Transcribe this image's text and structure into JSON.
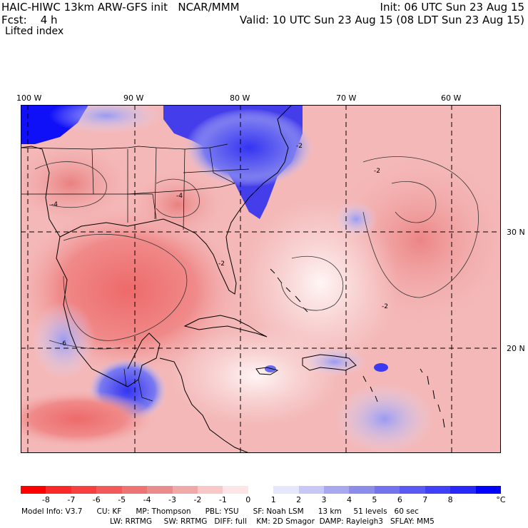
{
  "header": {
    "title": "HAIC-HIWC 13km ARW-GFS init   NCAR/MMM",
    "init": "Init: 06 UTC Sun 23 Aug 15",
    "fcst": "Fcst:    4 h",
    "valid": "Valid: 10 UTC Sun 23 Aug 15 (08 LDT Sun 23 Aug 15)",
    "field": "Lifted index"
  },
  "lon_labels": [
    "100 W",
    "90 W",
    "80 W",
    "70 W",
    "60 W"
  ],
  "lat_labels": [
    "30 N",
    "20 N"
  ],
  "contour_labels": [
    "-2",
    "-4",
    "-4",
    "-2",
    "-2",
    "-2",
    "-6"
  ],
  "colorbar": {
    "colors": [
      "#ff0000",
      "#fa2828",
      "#f64040",
      "#f25a5a",
      "#ee7373",
      "#ea8c8c",
      "#f0a8a8",
      "#f8c8c8",
      "#ffe6e6",
      "#ffffff",
      "#e6e6ff",
      "#c8c8f8",
      "#a8a8f0",
      "#8c8cea",
      "#7373ee",
      "#5a5af2",
      "#4040f6",
      "#2828fa",
      "#0000ff"
    ],
    "ticks": [
      "-8",
      "-7",
      "-6",
      "-5",
      "-4",
      "-3",
      "-2",
      "-1",
      "0",
      "1",
      "2",
      "3",
      "4",
      "5",
      "6",
      "7",
      "8"
    ],
    "unit": "°C"
  },
  "footer": {
    "line1": "Model Info: V3.7      CU: KF      MP: Thompson      PBL: YSU      SF: Noah LSM      13 km     51 levels   60 sec",
    "line2": "LW: RRTMG     SW: RRTMG   DIFF: full    KM: 2D Smagor  DAMP: Rayleigh3   SFLAY: MM5"
  }
}
